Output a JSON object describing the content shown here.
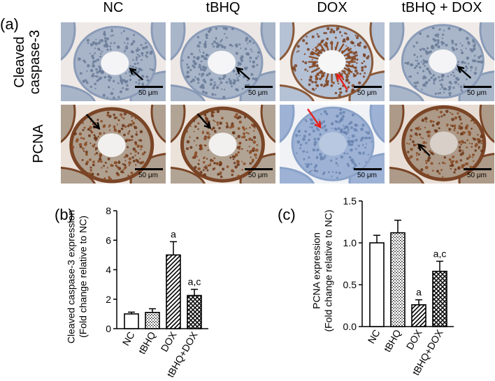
{
  "figure": {
    "panel_a_label": "(a)",
    "panel_b_label": "(b)",
    "panel_c_label": "(c)",
    "groups": [
      "NC",
      "tBHQ",
      "DOX",
      "tBHQ + DOX"
    ],
    "rows": [
      {
        "label_line1": "Cleaved",
        "label_line2": "caspase-3"
      },
      {
        "label_line1": "PCNA",
        "label_line2": ""
      }
    ],
    "scale_bar_label": "50 μm",
    "colors": {
      "stain_brown": "#8a4a22",
      "tissue_blue": "#9fb0cc",
      "black_arrow": "#000000",
      "red_arrow": "#e8201c"
    },
    "arrows": [
      [
        "black",
        "black",
        "red",
        "black"
      ],
      [
        "black",
        "black",
        "red",
        "black"
      ]
    ]
  },
  "chart_data": [
    {
      "type": "bar",
      "panel": "(b)",
      "categories": [
        "NC",
        "tBHQ",
        "DOX",
        "tBHQ+DOX"
      ],
      "values": [
        1.0,
        1.1,
        5.0,
        2.25
      ],
      "errors": [
        0.12,
        0.25,
        0.9,
        0.42
      ],
      "significance": [
        "",
        "",
        "a",
        "a,c"
      ],
      "patterns": [
        "open",
        "dotted",
        "hatched",
        "crosshatch"
      ],
      "ylabel_line1": "Cleaved caspase-3 expression",
      "ylabel_line2": "(Fold change relative to NC)",
      "ylim": [
        0,
        8
      ],
      "yticks": [
        "0",
        "2",
        "4",
        "6",
        "8"
      ]
    },
    {
      "type": "bar",
      "panel": "(c)",
      "categories": [
        "NC",
        "tBHQ",
        "DOX",
        "tBHQ+DOX"
      ],
      "values": [
        1.0,
        1.12,
        0.26,
        0.66
      ],
      "errors": [
        0.09,
        0.15,
        0.06,
        0.12
      ],
      "significance": [
        "",
        "",
        "a",
        "a,c"
      ],
      "patterns": [
        "open",
        "dotted",
        "hatched",
        "crosshatch"
      ],
      "ylabel_line1": "PCNA expression",
      "ylabel_line2": "(Fold change relative to NC)",
      "ylim": [
        0,
        1.5
      ],
      "yticks": [
        "0.0",
        "0.5",
        "1.0",
        "1.5"
      ]
    }
  ]
}
